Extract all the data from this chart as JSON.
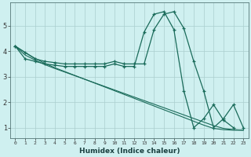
{
  "title": "",
  "xlabel": "Humidex (Indice chaleur)",
  "ylabel": "",
  "background_color": "#cff0f0",
  "line_color": "#1a6b5a",
  "grid_color": "#aacece",
  "xlim": [
    -0.5,
    23.5
  ],
  "ylim": [
    0.6,
    5.9
  ],
  "xticks": [
    0,
    1,
    2,
    3,
    4,
    5,
    6,
    7,
    8,
    9,
    10,
    11,
    12,
    13,
    14,
    15,
    16,
    17,
    18,
    19,
    20,
    21,
    22,
    23
  ],
  "yticks": [
    1,
    2,
    3,
    4,
    5
  ],
  "series": {
    "line_upper_curve": {
      "x": [
        0,
        1,
        2,
        3,
        4,
        5,
        6,
        7,
        8,
        9,
        10,
        11,
        12,
        13,
        14,
        15,
        16,
        17,
        18,
        19,
        20,
        21,
        22,
        23
      ],
      "y": [
        4.2,
        3.95,
        3.7,
        3.6,
        3.55,
        3.5,
        3.5,
        3.5,
        3.5,
        3.5,
        3.6,
        3.5,
        3.5,
        3.5,
        4.85,
        5.45,
        5.55,
        4.9,
        3.6,
        2.45,
        1.0,
        1.35,
        1.9,
        1.0
      ],
      "markers": true
    },
    "line_lower_curve": {
      "x": [
        0,
        1,
        2,
        3,
        4,
        5,
        6,
        7,
        8,
        9,
        10,
        11,
        12,
        13,
        14,
        15,
        16,
        17,
        18,
        19,
        20,
        21,
        22,
        23
      ],
      "y": [
        4.2,
        3.7,
        3.6,
        3.5,
        3.45,
        3.4,
        3.4,
        3.4,
        3.4,
        3.4,
        3.5,
        3.4,
        3.4,
        4.75,
        5.45,
        5.55,
        4.85,
        2.45,
        1.0,
        1.35,
        1.9,
        1.3,
        1.0,
        null
      ],
      "markers": true
    },
    "line_diag1": {
      "x": [
        0,
        1,
        2,
        3,
        4,
        5,
        6,
        7,
        8,
        9,
        10,
        11,
        12,
        13,
        14,
        15,
        16,
        17,
        18,
        19,
        20,
        21,
        22,
        23
      ],
      "y": [
        4.2,
        3.95,
        3.72,
        3.52,
        3.35,
        3.2,
        3.05,
        2.9,
        2.75,
        2.6,
        2.45,
        2.3,
        2.15,
        2.0,
        1.85,
        1.7,
        1.55,
        1.4,
        1.25,
        1.1,
        0.97,
        0.92,
        0.9,
        0.9
      ],
      "markers": false
    },
    "line_diag2": {
      "x": [
        0,
        1,
        2,
        3,
        4,
        5,
        6,
        7,
        8,
        9,
        10,
        11,
        12,
        13,
        14,
        15,
        16,
        17,
        18,
        19,
        20,
        21,
        22,
        23
      ],
      "y": [
        4.2,
        3.85,
        3.65,
        3.47,
        3.32,
        3.18,
        3.04,
        2.9,
        2.76,
        2.62,
        2.48,
        2.34,
        2.2,
        2.06,
        1.92,
        1.78,
        1.64,
        1.5,
        1.36,
        1.22,
        1.08,
        0.97,
        0.92,
        0.9
      ],
      "markers": false
    }
  }
}
